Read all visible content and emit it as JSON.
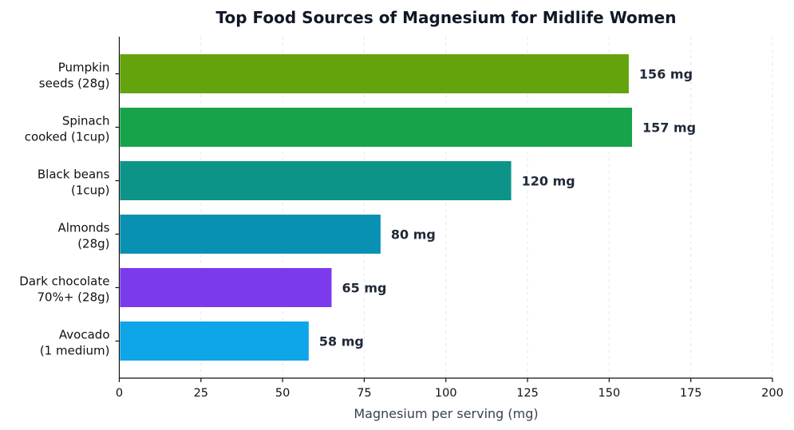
{
  "chart_data": {
    "type": "bar",
    "orientation": "horizontal",
    "title": "Top Food Sources of Magnesium for Midlife Women",
    "xlabel": "Magnesium per serving (mg)",
    "ylabel": "",
    "xlim": [
      0,
      200
    ],
    "xticks": [
      0,
      25,
      50,
      75,
      100,
      125,
      150,
      175,
      200
    ],
    "grid": "vertical dashed",
    "categories": [
      [
        "Pumpkin",
        "seeds (28g)"
      ],
      [
        "Spinach",
        "cooked (1cup)"
      ],
      [
        "Black beans",
        "(1cup)"
      ],
      [
        "Almonds",
        "(28g)"
      ],
      [
        "Dark chocolate",
        "70%+ (28g)"
      ],
      [
        "Avocado",
        "(1 medium)"
      ]
    ],
    "values": [
      156,
      157,
      120,
      80,
      65,
      58
    ],
    "value_labels": [
      "156 mg",
      "157 mg",
      "120 mg",
      "80 mg",
      "65 mg",
      "58 mg"
    ],
    "colors": [
      "#65a30d",
      "#16a34a",
      "#0d9488",
      "#0891b2",
      "#7c3aed",
      "#0ea5e9"
    ]
  }
}
